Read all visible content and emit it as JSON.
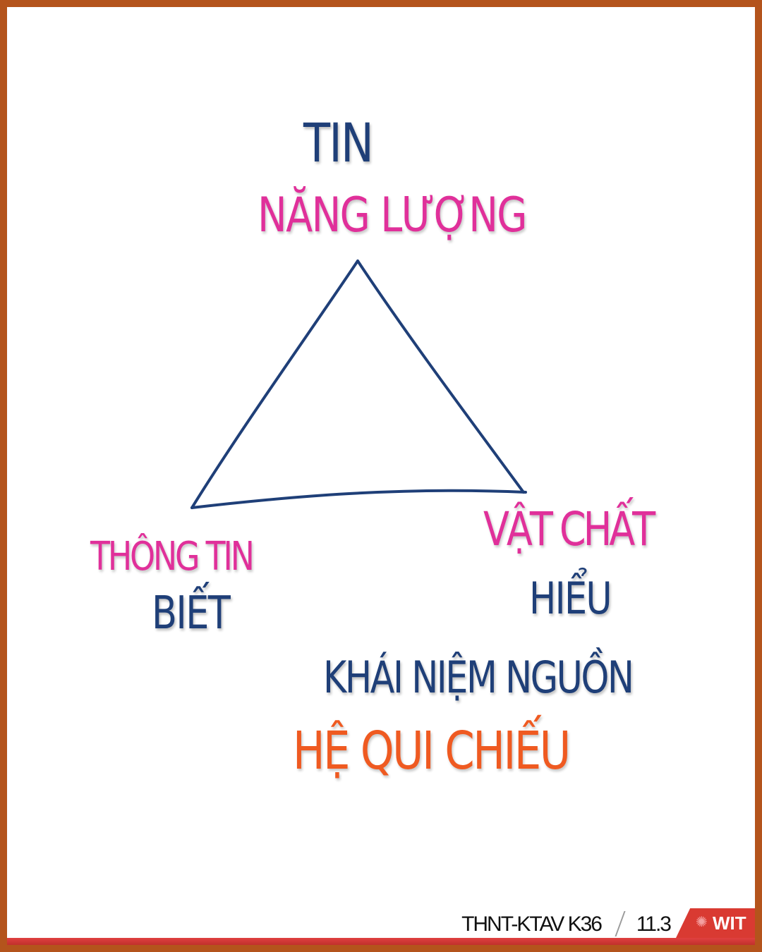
{
  "diagram": {
    "top_label_1": "TIN",
    "top_label_2": "NĂNG LƯỢNG",
    "left_label_1": "THÔNG TIN",
    "left_label_2": "BIẾT",
    "right_label_1": "VẬT CHẤT",
    "right_label_2": "HIỂU",
    "bottom_label_1": "KHÁI NIỆM NGUỒN",
    "bottom_label_2": "HỆ QUI CHIẾU",
    "colors": {
      "navy": "#1f3f78",
      "pink": "#e0309a",
      "orange": "#ef5a21",
      "frame": "#b4541c"
    }
  },
  "footer": {
    "course": "THNT-KTAV K36",
    "page": "11.3",
    "logo_text": "WIT",
    "logo_icon": "sun-emblem-icon"
  }
}
